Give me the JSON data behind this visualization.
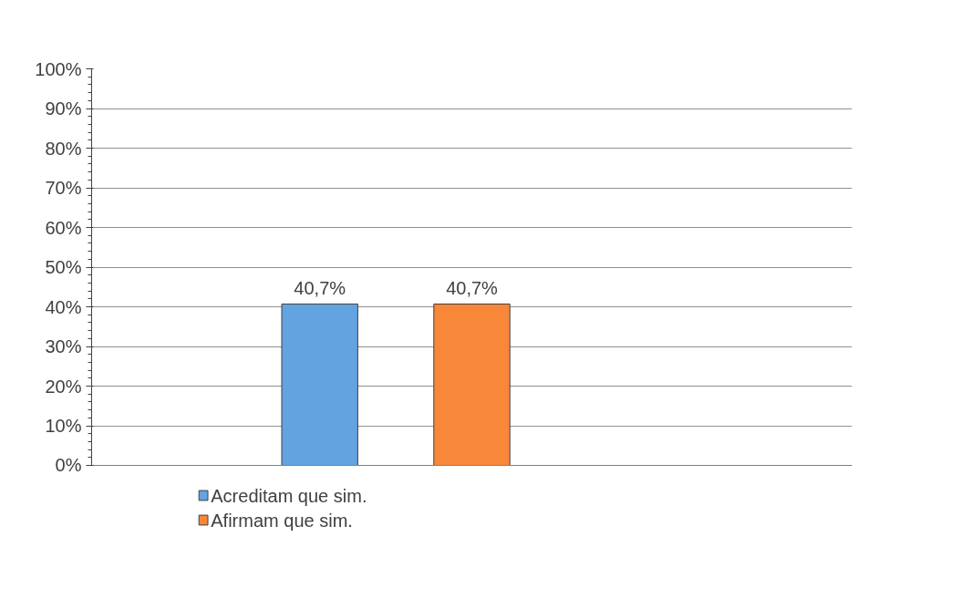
{
  "chart_data": {
    "type": "bar",
    "categories": [
      null
    ],
    "series": [
      {
        "name": "Acreditam que sim.",
        "color": "#62a3e0",
        "values": [
          40.7
        ],
        "value_labels": [
          "40,7%"
        ]
      },
      {
        "name": "Afirmam que sim.",
        "color": "#f8873a",
        "values": [
          40.7
        ],
        "value_labels": [
          "40,7%"
        ]
      }
    ],
    "ylim": [
      0,
      100
    ],
    "yticks": [
      {
        "value": 0,
        "label": "0%"
      },
      {
        "value": 10,
        "label": "10%"
      },
      {
        "value": 20,
        "label": "20%"
      },
      {
        "value": 30,
        "label": "30%"
      },
      {
        "value": 40,
        "label": "40%"
      },
      {
        "value": 50,
        "label": "50%"
      },
      {
        "value": 60,
        "label": "60%"
      },
      {
        "value": 70,
        "label": "70%"
      },
      {
        "value": 80,
        "label": "80%"
      },
      {
        "value": 90,
        "label": "90%"
      },
      {
        "value": 100,
        "label": "100%"
      }
    ],
    "grid": "y",
    "legend": "bottom"
  }
}
